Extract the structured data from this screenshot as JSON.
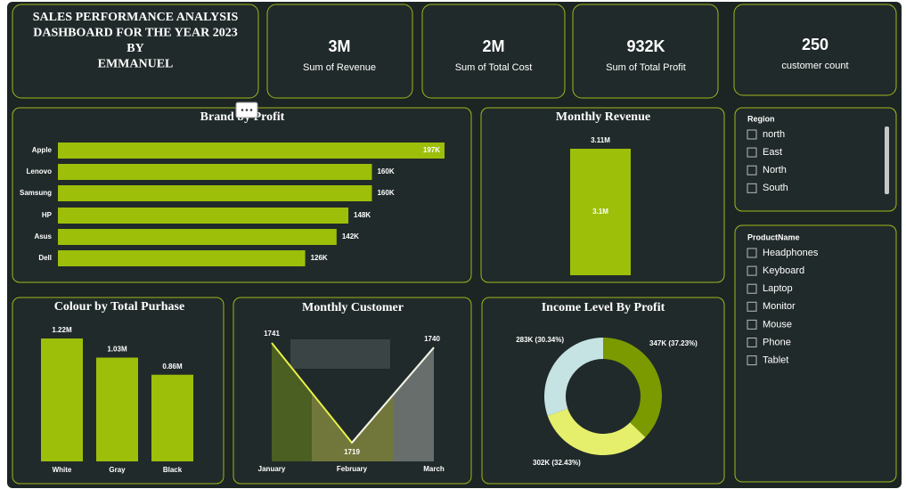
{
  "header": {
    "title": [
      "SALES PERFORMANCE ANALYSIS",
      "DASHBOARD FOR THE YEAR 2023",
      "BY",
      "EMMANUEL"
    ]
  },
  "cards": [
    {
      "value": "3M",
      "label": "Sum of Revenue"
    },
    {
      "value": "2M",
      "label": "Sum of Total Cost"
    },
    {
      "value": "932K",
      "label": "Sum of Total Profit"
    },
    {
      "value": "250",
      "label": "customer count"
    }
  ],
  "chart_data": [
    {
      "type": "bar",
      "orientation": "horizontal",
      "title": "Brand by Profit",
      "categories": [
        "Apple",
        "Lenovo",
        "Samsung",
        "HP",
        "Asus",
        "Dell"
      ],
      "values": [
        197000,
        160000,
        160000,
        148000,
        142000,
        126000
      ],
      "value_labels": [
        "197K",
        "160K",
        "160K",
        "148K",
        "142K",
        "126K"
      ],
      "color": "#9dbf0a"
    },
    {
      "type": "bar",
      "orientation": "vertical",
      "title": "Monthly Revenue",
      "categories": [
        null
      ],
      "values": [
        3110000
      ],
      "value_labels": [
        "3.11M"
      ],
      "inner_labels": [
        "3.1M"
      ],
      "color": "#9dbf0a"
    },
    {
      "type": "bar",
      "orientation": "vertical",
      "title": "Colour by Total Purhase",
      "categories": [
        "White",
        "Gray",
        "Black"
      ],
      "values": [
        1220000,
        1030000,
        860000
      ],
      "value_labels": [
        "1.22M",
        "1.03M",
        "0.86M"
      ],
      "color": "#9dbf0a"
    },
    {
      "type": "area",
      "title": "Monthly Customer",
      "categories": [
        "January",
        "February",
        "March"
      ],
      "values": [
        1741,
        1719,
        1740
      ],
      "colors": [
        "#4f6520",
        "#7a7f3c",
        "#6f7672"
      ]
    },
    {
      "type": "donut",
      "title": "Income Level By Profit",
      "values": [
        37.23,
        32.43,
        30.34
      ],
      "value_labels": [
        "347K (37.23%)",
        "302K (32.43%)",
        "283K (30.34%)"
      ],
      "colors": [
        "#7a9a00",
        "#e6ef6b",
        "#c5e3e3"
      ]
    }
  ],
  "slicers": [
    {
      "title": "Region",
      "items": [
        "north",
        "East",
        "North",
        "South"
      ]
    },
    {
      "title": "ProductName",
      "items": [
        "Headphones",
        "Keyboard",
        "Laptop",
        "Monitor",
        "Mouse",
        "Phone",
        "Tablet"
      ]
    }
  ]
}
